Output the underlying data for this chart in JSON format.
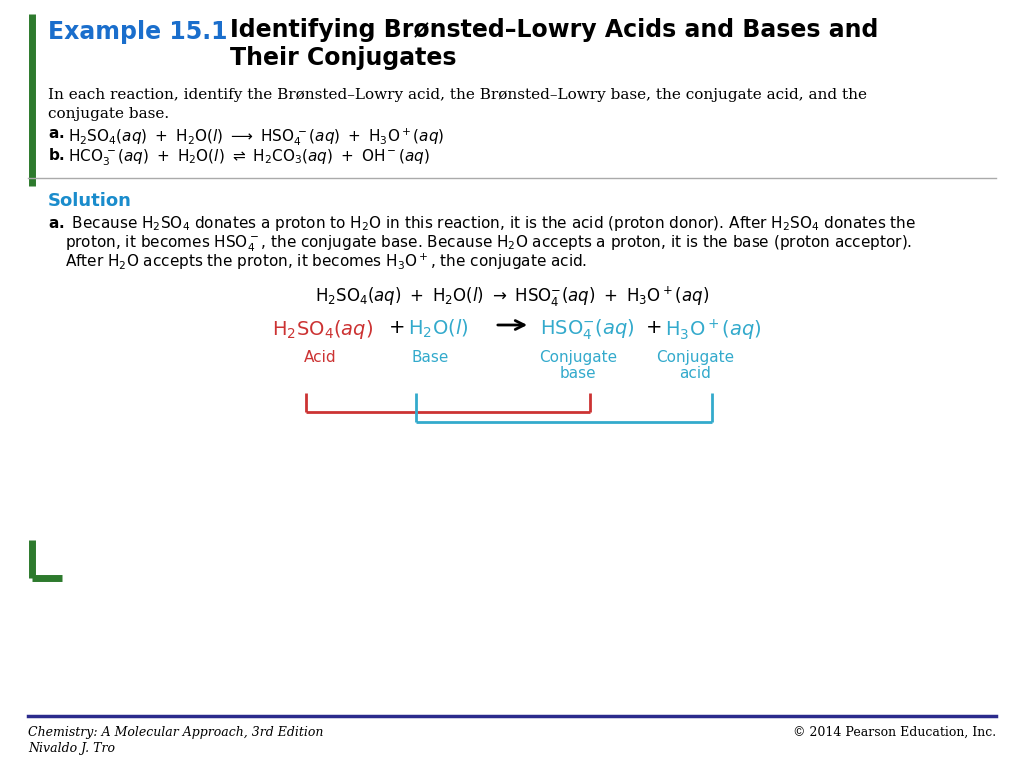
{
  "bg_color": "#ffffff",
  "left_bar_color": "#2d7a2d",
  "header_blue": "#1a6ecc",
  "solution_blue": "#1a8ccc",
  "acid_red": "#cc3333",
  "base_cyan": "#33aacc",
  "bracket_red": "#cc3333",
  "bracket_cyan": "#33aacc",
  "footer_line_color": "#2b2b8c",
  "text_black": "#000000",
  "divider_gray": "#aaaaaa",
  "example_label": "Example 15.1",
  "title_line1": "Identifying Brønsted–Lowry Acids and Bases and",
  "title_line2": "Their Conjugates",
  "footer_left_line1": "Chemistry: A Molecular Approach, 3rd Edition",
  "footer_left_line2": "Nivaldo J. Tro",
  "footer_right": "© 2014 Pearson Education, Inc."
}
